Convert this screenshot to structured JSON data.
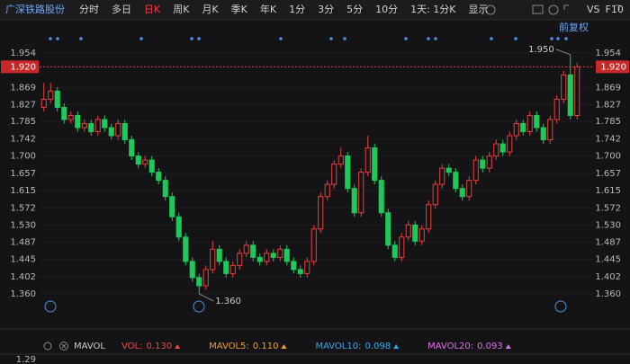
{
  "toolbar": {
    "title": "广深铁路股份",
    "tabs": [
      "分时",
      "多日",
      "日K",
      "周K",
      "月K",
      "季K",
      "年K",
      "1分",
      "3分",
      "5分",
      "10分",
      "1天: 1分K",
      "显示"
    ],
    "right": [
      "VS",
      "F10"
    ]
  },
  "adjust_label": "前复权",
  "chart_data": {
    "type": "candlestick",
    "up_color": "#f03c3c",
    "down_color": "#1ec85a",
    "ylim": [
      1.32,
      1.985
    ],
    "yticks": [
      {
        "value": 1.954,
        "label": "1.954"
      },
      {
        "value": 1.869,
        "label": "1.869"
      },
      {
        "value": 1.827,
        "label": "1.827"
      },
      {
        "value": 1.785,
        "label": "1.785"
      },
      {
        "value": 1.742,
        "label": "1.742"
      },
      {
        "value": 1.7,
        "label": "1.700"
      },
      {
        "value": 1.657,
        "label": "1.657"
      },
      {
        "value": 1.615,
        "label": "1.615"
      },
      {
        "value": 1.572,
        "label": "1.572"
      },
      {
        "value": 1.53,
        "label": "1.530"
      },
      {
        "value": 1.487,
        "label": "1.487"
      },
      {
        "value": 1.445,
        "label": "1.445"
      },
      {
        "value": 1.402,
        "label": "1.402"
      },
      {
        "value": 1.36,
        "label": "1.360"
      }
    ],
    "current_price": {
      "value": 1.92,
      "label": "1.920"
    },
    "annotations": [
      {
        "value": 1.95,
        "label": "1.950"
      },
      {
        "value": 1.36,
        "label": "1.360"
      }
    ],
    "open": [
      1.82,
      1.84,
      1.86,
      1.82,
      1.79,
      1.8,
      1.77,
      1.78,
      1.76,
      1.79,
      1.77,
      1.75,
      1.78,
      1.74,
      1.7,
      1.68,
      1.69,
      1.66,
      1.64,
      1.6,
      1.55,
      1.5,
      1.44,
      1.4,
      1.38,
      1.42,
      1.47,
      1.44,
      1.41,
      1.43,
      1.46,
      1.48,
      1.45,
      1.44,
      1.46,
      1.45,
      1.47,
      1.44,
      1.42,
      1.41,
      1.44,
      1.52,
      1.6,
      1.63,
      1.68,
      1.7,
      1.62,
      1.56,
      1.66,
      1.72,
      1.64,
      1.56,
      1.48,
      1.45,
      1.5,
      1.53,
      1.49,
      1.52,
      1.58,
      1.63,
      1.67,
      1.66,
      1.62,
      1.6,
      1.64,
      1.69,
      1.67,
      1.7,
      1.73,
      1.71,
      1.75,
      1.78,
      1.76,
      1.8,
      1.77,
      1.74,
      1.79,
      1.84,
      1.9,
      1.8
    ],
    "high": [
      1.88,
      1.88,
      1.87,
      1.83,
      1.81,
      1.81,
      1.79,
      1.79,
      1.8,
      1.8,
      1.78,
      1.79,
      1.79,
      1.75,
      1.71,
      1.7,
      1.7,
      1.67,
      1.65,
      1.61,
      1.56,
      1.51,
      1.45,
      1.41,
      1.43,
      1.49,
      1.48,
      1.45,
      1.44,
      1.47,
      1.49,
      1.49,
      1.46,
      1.47,
      1.47,
      1.48,
      1.48,
      1.45,
      1.43,
      1.45,
      1.53,
      1.61,
      1.64,
      1.69,
      1.72,
      1.71,
      1.63,
      1.67,
      1.75,
      1.73,
      1.65,
      1.57,
      1.49,
      1.51,
      1.54,
      1.54,
      1.53,
      1.59,
      1.64,
      1.68,
      1.68,
      1.67,
      1.63,
      1.65,
      1.7,
      1.7,
      1.71,
      1.74,
      1.74,
      1.76,
      1.79,
      1.79,
      1.81,
      1.81,
      1.78,
      1.8,
      1.85,
      1.91,
      1.95,
      1.93
    ],
    "low": [
      1.81,
      1.83,
      1.81,
      1.78,
      1.78,
      1.76,
      1.76,
      1.75,
      1.75,
      1.76,
      1.74,
      1.74,
      1.73,
      1.69,
      1.67,
      1.67,
      1.65,
      1.63,
      1.59,
      1.54,
      1.49,
      1.43,
      1.39,
      1.36,
      1.37,
      1.41,
      1.43,
      1.4,
      1.4,
      1.42,
      1.45,
      1.44,
      1.43,
      1.43,
      1.44,
      1.44,
      1.43,
      1.41,
      1.4,
      1.4,
      1.43,
      1.51,
      1.59,
      1.62,
      1.67,
      1.61,
      1.55,
      1.55,
      1.65,
      1.63,
      1.55,
      1.47,
      1.44,
      1.44,
      1.49,
      1.48,
      1.48,
      1.51,
      1.57,
      1.62,
      1.65,
      1.61,
      1.59,
      1.59,
      1.63,
      1.66,
      1.66,
      1.69,
      1.7,
      1.7,
      1.74,
      1.75,
      1.75,
      1.76,
      1.73,
      1.73,
      1.78,
      1.83,
      1.79,
      1.79
    ],
    "close": [
      1.84,
      1.86,
      1.82,
      1.79,
      1.8,
      1.77,
      1.78,
      1.76,
      1.79,
      1.77,
      1.75,
      1.78,
      1.74,
      1.7,
      1.68,
      1.69,
      1.66,
      1.64,
      1.6,
      1.55,
      1.5,
      1.44,
      1.4,
      1.38,
      1.42,
      1.47,
      1.44,
      1.41,
      1.43,
      1.46,
      1.48,
      1.45,
      1.44,
      1.46,
      1.45,
      1.47,
      1.44,
      1.42,
      1.41,
      1.44,
      1.52,
      1.6,
      1.63,
      1.68,
      1.7,
      1.62,
      1.56,
      1.66,
      1.72,
      1.64,
      1.56,
      1.48,
      1.45,
      1.5,
      1.53,
      1.49,
      1.52,
      1.58,
      1.63,
      1.67,
      1.66,
      1.62,
      1.6,
      1.64,
      1.69,
      1.67,
      1.7,
      1.73,
      1.71,
      1.75,
      1.78,
      1.76,
      1.8,
      1.77,
      1.74,
      1.79,
      1.84,
      1.9,
      1.8,
      1.92
    ]
  },
  "volume_bar": {
    "name": "MAVOL",
    "items": [
      {
        "label": "VOL:",
        "value": "0.130",
        "color": "#f04848"
      },
      {
        "label": "MAVOL5:",
        "value": "0.110",
        "color": "#f0a030"
      },
      {
        "label": "MAVOL10:",
        "value": "0.098",
        "color": "#36a8e8"
      },
      {
        "label": "MAVOL20:",
        "value": "0.093",
        "color": "#e070e8"
      }
    ],
    "axis_top": "1.29"
  }
}
